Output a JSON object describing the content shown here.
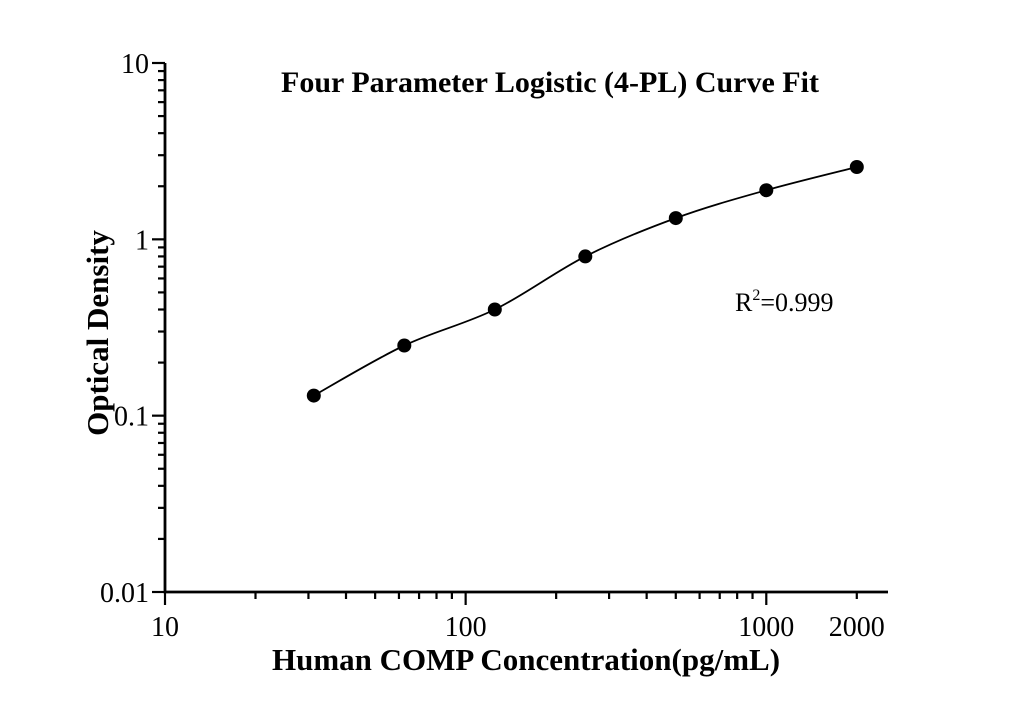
{
  "colors": {
    "foreground": "#000000",
    "background": "#ffffff"
  },
  "chart_data": {
    "type": "scatter",
    "title": "Four Parameter Logistic (4-PL) Curve Fit",
    "xlabel": "Human COMP Concentration(pg/mL)",
    "ylabel": "Optical Density",
    "x_scale": "log",
    "y_scale": "log",
    "xlim": [
      10,
      2540
    ],
    "ylim": [
      0.01,
      10
    ],
    "grid": false,
    "legend": false,
    "x": [
      31.25,
      62.5,
      125,
      250,
      500,
      1000,
      2000
    ],
    "y": [
      0.13,
      0.25,
      0.4,
      0.8,
      1.32,
      1.9,
      2.57
    ],
    "fit_curve": "smooth 4-parameter logistic fit through all data points",
    "x_ticks": [
      {
        "value": 10,
        "label": "10",
        "major": true
      },
      {
        "value": 100,
        "label": "100",
        "major": true
      },
      {
        "value": 1000,
        "label": "1000",
        "major": true
      },
      {
        "value": 2000,
        "label": "2000",
        "major": false
      }
    ],
    "y_ticks": [
      {
        "value": 10,
        "label": "10"
      },
      {
        "value": 1,
        "label": "1"
      },
      {
        "value": 0.1,
        "label": "0.1"
      },
      {
        "value": 0.01,
        "label": "0.01"
      }
    ],
    "annotation": {
      "base": "R",
      "sup": "2",
      "rest": "=0.999",
      "r_squared": 0.999
    }
  }
}
